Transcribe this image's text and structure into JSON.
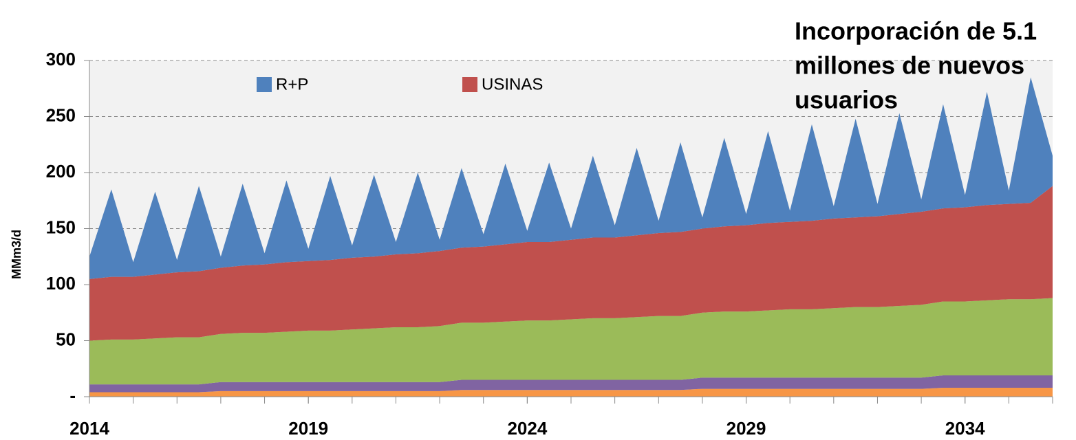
{
  "chart_data": {
    "type": "stacked_area",
    "annotation": [
      "Incorporación de 5.1",
      "millones de nuevos",
      "usuarios"
    ],
    "ylabel": "MMm3/d",
    "x": [
      2014,
      2014.5,
      2015,
      2015.5,
      2016,
      2016.5,
      2017,
      2017.5,
      2018,
      2018.5,
      2019,
      2019.5,
      2020,
      2020.5,
      2021,
      2021.5,
      2022,
      2022.5,
      2023,
      2023.5,
      2024,
      2024.5,
      2025,
      2025.5,
      2026,
      2026.5,
      2027,
      2027.5,
      2028,
      2028.5,
      2029,
      2029.5,
      2030,
      2030.5,
      2031,
      2031.5,
      2032,
      2032.5,
      2033,
      2033.5,
      2034,
      2034.5,
      2035,
      2035.5,
      2036
    ],
    "series": [
      {
        "color": "#f79646",
        "values": [
          4,
          4,
          4,
          4,
          4,
          4,
          5,
          5,
          5,
          5,
          5,
          5,
          5,
          5,
          5,
          5,
          5,
          6,
          6,
          6,
          6,
          6,
          6,
          6,
          6,
          6,
          6,
          6,
          7,
          7,
          7,
          7,
          7,
          7,
          7,
          7,
          7,
          7,
          7,
          8,
          8,
          8,
          8,
          8,
          8
        ]
      },
      {
        "color": "#8064a2",
        "values": [
          7,
          7,
          7,
          7,
          7,
          7,
          8,
          8,
          8,
          8,
          8,
          8,
          8,
          8,
          8,
          8,
          8,
          9,
          9,
          9,
          9,
          9,
          9,
          9,
          9,
          9,
          9,
          9,
          10,
          10,
          10,
          10,
          10,
          10,
          10,
          10,
          10,
          10,
          10,
          11,
          11,
          11,
          11,
          11,
          11
        ]
      },
      {
        "color": "#9bbb59",
        "values": [
          39,
          40,
          40,
          41,
          42,
          42,
          43,
          44,
          44,
          45,
          46,
          46,
          47,
          48,
          49,
          49,
          50,
          51,
          51,
          52,
          53,
          53,
          54,
          55,
          55,
          56,
          57,
          57,
          58,
          59,
          59,
          60,
          61,
          61,
          62,
          63,
          63,
          64,
          65,
          66,
          66,
          67,
          68,
          68,
          69
        ]
      },
      {
        "name": "USINAS",
        "color": "#c0504d",
        "values": [
          55,
          56,
          56,
          57,
          58,
          59,
          59,
          60,
          61,
          62,
          62,
          63,
          64,
          64,
          65,
          66,
          67,
          67,
          68,
          69,
          70,
          70,
          71,
          72,
          72,
          73,
          74,
          75,
          75,
          76,
          77,
          78,
          78,
          79,
          80,
          80,
          81,
          82,
          83,
          83,
          84,
          85,
          85,
          86,
          100
        ]
      },
      {
        "name": "R+P",
        "color": "#4f81bd",
        "values": [
          20,
          78,
          13,
          74,
          11,
          76,
          10,
          73,
          10,
          73,
          11,
          75,
          11,
          73,
          11,
          72,
          10,
          71,
          11,
          72,
          10,
          71,
          10,
          73,
          11,
          78,
          11,
          80,
          10,
          79,
          10,
          82,
          10,
          86,
          11,
          88,
          11,
          90,
          11,
          93,
          11,
          101,
          12,
          112,
          27
        ]
      }
    ],
    "xlim": [
      2014,
      2036
    ],
    "xticks": [
      2014,
      2019,
      2024,
      2029,
      2034
    ],
    "ylim": [
      0,
      300
    ],
    "yticks": [
      {
        "value": 0,
        "label": "-"
      },
      50,
      100,
      150,
      200,
      250,
      300
    ],
    "grid": true
  }
}
